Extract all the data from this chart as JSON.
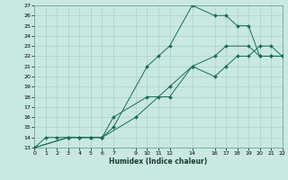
{
  "xlabel": "Humidex (Indice chaleur)",
  "bg_color": "#c8e8e0",
  "grid_color": "#aed0c8",
  "line_color": "#1a6b5a",
  "ylim": [
    13,
    27
  ],
  "xlim": [
    0,
    22
  ],
  "yticks": [
    13,
    14,
    15,
    16,
    17,
    18,
    19,
    20,
    21,
    22,
    23,
    24,
    25,
    26,
    27
  ],
  "xticks": [
    0,
    1,
    2,
    3,
    4,
    5,
    6,
    7,
    9,
    10,
    11,
    12,
    14,
    16,
    17,
    18,
    19,
    20,
    21,
    22
  ],
  "series": [
    {
      "x": [
        0,
        1,
        2,
        3,
        4,
        5,
        6,
        7,
        10,
        11,
        12,
        14,
        16,
        17,
        18,
        19,
        20,
        21,
        22
      ],
      "y": [
        13,
        14,
        14,
        14,
        14,
        14,
        14,
        15,
        21,
        22,
        23,
        27,
        26,
        26,
        25,
        25,
        22,
        22,
        22
      ]
    },
    {
      "x": [
        0,
        3,
        4,
        5,
        6,
        7,
        10,
        11,
        12,
        14,
        16,
        17,
        19,
        20,
        21,
        22
      ],
      "y": [
        13,
        14,
        14,
        14,
        14,
        16,
        18,
        18,
        18,
        21,
        22,
        23,
        23,
        22,
        22,
        22
      ]
    },
    {
      "x": [
        0,
        3,
        6,
        9,
        12,
        14,
        16,
        17,
        18,
        19,
        20,
        21,
        22
      ],
      "y": [
        13,
        14,
        14,
        16,
        19,
        21,
        20,
        21,
        22,
        22,
        23,
        23,
        22
      ]
    }
  ]
}
